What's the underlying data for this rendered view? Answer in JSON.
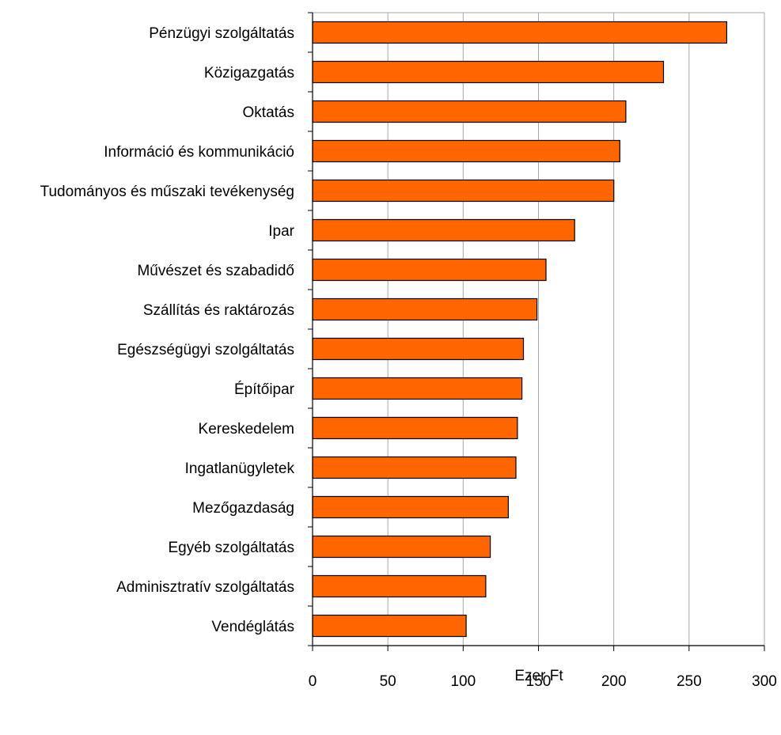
{
  "chart_data": {
    "type": "bar",
    "orientation": "horizontal",
    "categories": [
      "Pénzügyi szolgáltatás",
      "Közigazgatás",
      "Oktatás",
      "Információ és kommunikáció",
      "Tudományos és műszaki tevékenység",
      "Ipar",
      "Művészet és szabadidő",
      "Szállítás és raktározás",
      "Egészségügyi szolgáltatás",
      "Építőipar",
      "Kereskedelem",
      "Ingatlanügyletek",
      "Mezőgazdaság",
      "Egyéb szolgáltatás",
      "Adminisztratív szolgáltatás",
      "Vendéglátás"
    ],
    "values": [
      275,
      233,
      208,
      204,
      200,
      174,
      155,
      149,
      140,
      139,
      136,
      135,
      130,
      118,
      115,
      102
    ],
    "xlabel": "Ezer Ft",
    "ylabel": "",
    "title": "",
    "xlim": [
      0,
      300
    ],
    "xticks": [
      "0",
      "50",
      "100",
      "150",
      "200",
      "250",
      "300"
    ],
    "grid": "vertical",
    "legend": "none",
    "colors": {
      "bar_fill": "#ff6600",
      "bar_stroke": "#000000",
      "grid": "#a6a6a6",
      "axis": "#000000"
    }
  }
}
